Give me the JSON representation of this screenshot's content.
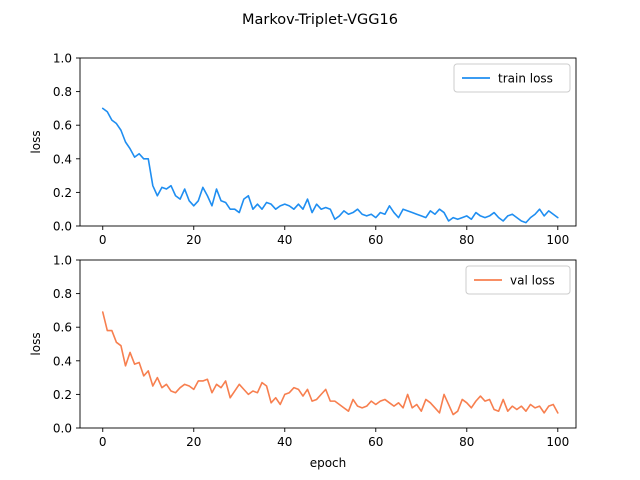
{
  "figure": {
    "title": "Markov-Triplet-VGG16"
  },
  "chart_data": [
    {
      "type": "line",
      "xlabel": "",
      "ylabel": "loss",
      "xlim": [
        -5,
        104
      ],
      "ylim": [
        0.0,
        1.0
      ],
      "xticks": [
        0,
        20,
        40,
        60,
        80,
        100
      ],
      "yticks": [
        0.0,
        0.2,
        0.4,
        0.6,
        0.8,
        1.0
      ],
      "legend": "top-right",
      "series": [
        {
          "name": "train loss",
          "color": "#1f8ef1",
          "values": [
            0.7,
            0.68,
            0.63,
            0.61,
            0.57,
            0.5,
            0.46,
            0.41,
            0.43,
            0.4,
            0.4,
            0.24,
            0.18,
            0.23,
            0.22,
            0.24,
            0.18,
            0.16,
            0.22,
            0.15,
            0.12,
            0.15,
            0.23,
            0.18,
            0.12,
            0.22,
            0.15,
            0.14,
            0.1,
            0.1,
            0.08,
            0.16,
            0.18,
            0.1,
            0.13,
            0.1,
            0.14,
            0.13,
            0.1,
            0.12,
            0.13,
            0.12,
            0.1,
            0.13,
            0.1,
            0.16,
            0.08,
            0.13,
            0.1,
            0.11,
            0.1,
            0.04,
            0.06,
            0.09,
            0.07,
            0.08,
            0.1,
            0.07,
            0.06,
            0.07,
            0.05,
            0.08,
            0.07,
            0.12,
            0.08,
            0.05,
            0.1,
            0.09,
            0.08,
            0.07,
            0.06,
            0.05,
            0.09,
            0.07,
            0.1,
            0.08,
            0.03,
            0.05,
            0.04,
            0.05,
            0.06,
            0.04,
            0.08,
            0.06,
            0.05,
            0.06,
            0.08,
            0.05,
            0.03,
            0.06,
            0.07,
            0.05,
            0.03,
            0.02,
            0.05,
            0.07,
            0.1,
            0.06,
            0.09,
            0.07,
            0.05
          ]
        }
      ]
    },
    {
      "type": "line",
      "xlabel": "epoch",
      "ylabel": "loss",
      "xlim": [
        -5,
        104
      ],
      "ylim": [
        0.0,
        1.0
      ],
      "xticks": [
        0,
        20,
        40,
        60,
        80,
        100
      ],
      "yticks": [
        0.0,
        0.2,
        0.4,
        0.6,
        0.8,
        1.0
      ],
      "legend": "top-right",
      "series": [
        {
          "name": "val loss",
          "color": "#f77f4f",
          "values": [
            0.69,
            0.58,
            0.58,
            0.51,
            0.49,
            0.37,
            0.45,
            0.38,
            0.39,
            0.31,
            0.34,
            0.25,
            0.3,
            0.24,
            0.26,
            0.22,
            0.21,
            0.24,
            0.26,
            0.25,
            0.23,
            0.28,
            0.28,
            0.29,
            0.21,
            0.26,
            0.24,
            0.28,
            0.18,
            0.22,
            0.26,
            0.23,
            0.2,
            0.22,
            0.21,
            0.27,
            0.25,
            0.15,
            0.18,
            0.14,
            0.2,
            0.21,
            0.24,
            0.23,
            0.19,
            0.23,
            0.16,
            0.17,
            0.2,
            0.23,
            0.16,
            0.16,
            0.14,
            0.12,
            0.1,
            0.17,
            0.13,
            0.12,
            0.13,
            0.16,
            0.14,
            0.16,
            0.17,
            0.15,
            0.13,
            0.15,
            0.12,
            0.2,
            0.12,
            0.14,
            0.1,
            0.17,
            0.15,
            0.12,
            0.09,
            0.2,
            0.14,
            0.08,
            0.1,
            0.17,
            0.15,
            0.12,
            0.16,
            0.19,
            0.16,
            0.17,
            0.11,
            0.1,
            0.17,
            0.1,
            0.13,
            0.11,
            0.13,
            0.1,
            0.14,
            0.12,
            0.13,
            0.09,
            0.13,
            0.14,
            0.09
          ]
        }
      ]
    }
  ]
}
